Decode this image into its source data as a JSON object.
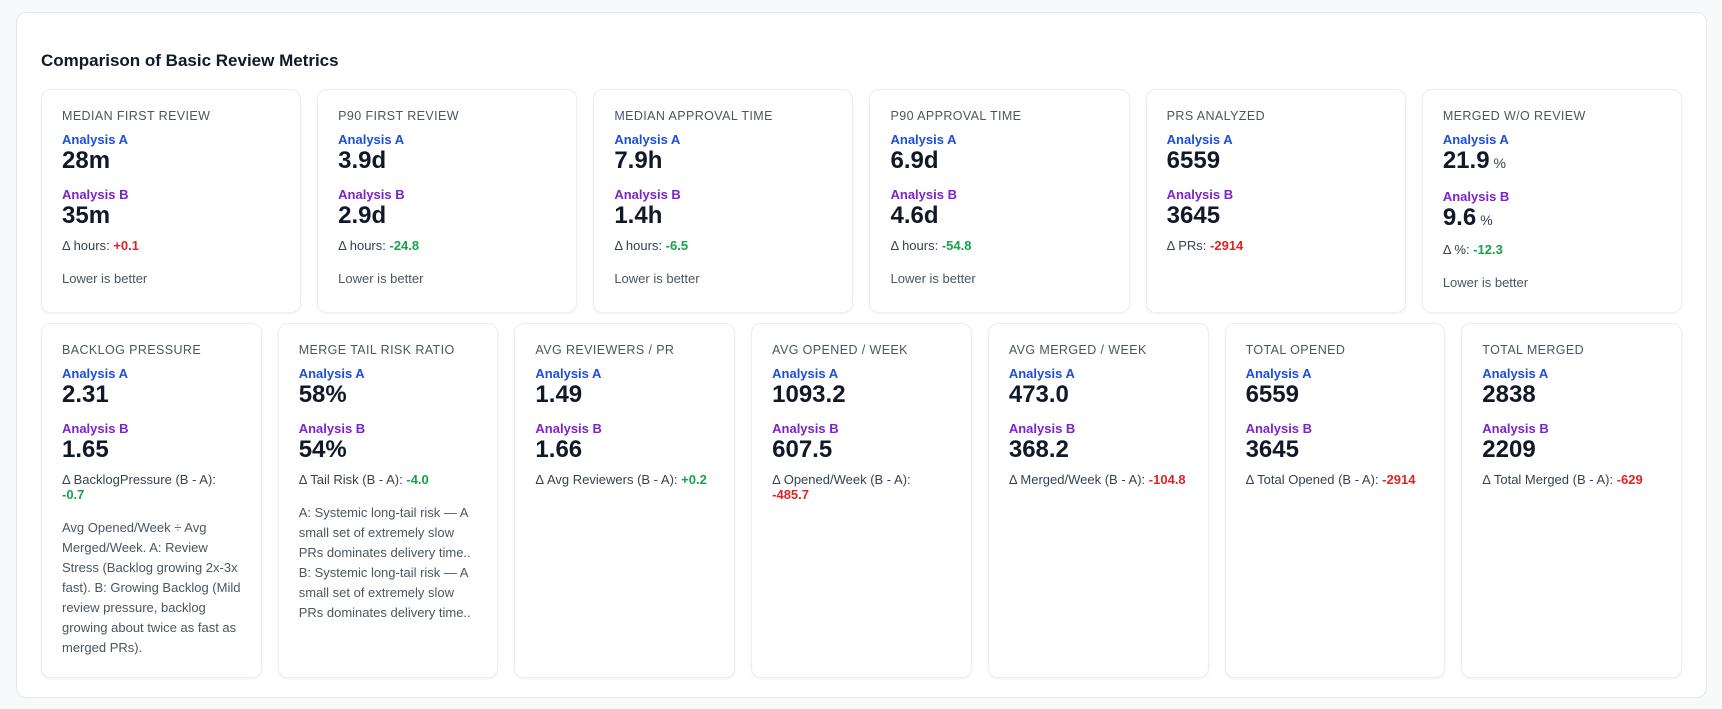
{
  "title": "Comparison of Basic Review Metrics",
  "rows": [
    [
      {
        "label": "MEDIAN FIRST REVIEW",
        "a_label": "Analysis A",
        "a_value": "28m",
        "b_label": "Analysis B",
        "b_value": "35m",
        "delta_label": "Δ hours:",
        "delta": "+0.1",
        "delta_color": "#dc2626",
        "note": "Lower is better"
      },
      {
        "label": "P90 FIRST REVIEW",
        "a_label": "Analysis A",
        "a_value": "3.9d",
        "b_label": "Analysis B",
        "b_value": "2.9d",
        "delta_label": "Δ hours:",
        "delta": "-24.8",
        "delta_color": "#16a34a",
        "note": "Lower is better"
      },
      {
        "label": "MEDIAN APPROVAL TIME",
        "a_label": "Analysis A",
        "a_value": "7.9h",
        "b_label": "Analysis B",
        "b_value": "1.4h",
        "delta_label": "Δ hours:",
        "delta": "-6.5",
        "delta_color": "#16a34a",
        "note": "Lower is better"
      },
      {
        "label": "P90 APPROVAL TIME",
        "a_label": "Analysis A",
        "a_value": "6.9d",
        "b_label": "Analysis B",
        "b_value": "4.6d",
        "delta_label": "Δ hours:",
        "delta": "-54.8",
        "delta_color": "#16a34a",
        "note": "Lower is better"
      },
      {
        "label": "PRS ANALYZED",
        "a_label": "Analysis A",
        "a_value": "6559",
        "b_label": "Analysis B",
        "b_value": "3645",
        "delta_label": "Δ PRs:",
        "delta": "-2914",
        "delta_color": "#dc2626"
      },
      {
        "label": "MERGED W/O REVIEW",
        "a_label": "Analysis A",
        "a_value": "21.9",
        "a_unit": "%",
        "b_label": "Analysis B",
        "b_value": "9.6",
        "b_unit": "%",
        "delta_label": "Δ %:",
        "delta": "-12.3",
        "delta_color": "#16a34a",
        "note": "Lower is better"
      }
    ],
    [
      {
        "label": "BACKLOG PRESSURE",
        "a_label": "Analysis A",
        "a_value": "2.31",
        "b_label": "Analysis B",
        "b_value": "1.65",
        "delta_label": "Δ BacklogPressure (B - A):",
        "delta": "-0.7",
        "delta_color": "#16a34a",
        "note": "Avg Opened/Week ÷ Avg Merged/Week. A: Review Stress (Backlog growing 2x-3x fast). B: Growing Backlog (Mild review pressure, backlog growing about twice as fast as merged PRs)."
      },
      {
        "label": "MERGE TAIL RISK RATIO",
        "a_label": "Analysis A",
        "a_value": "58%",
        "b_label": "Analysis B",
        "b_value": "54%",
        "delta_label": "Δ Tail Risk (B - A):",
        "delta": "-4.0",
        "delta_color": "#16a34a",
        "note": "A: Systemic long-tail risk — A small set of extremely slow PRs dominates delivery time.. B: Systemic long-tail risk — A small set of extremely slow PRs dominates delivery time.."
      },
      {
        "label": "AVG REVIEWERS / PR",
        "a_label": "Analysis A",
        "a_value": "1.49",
        "b_label": "Analysis B",
        "b_value": "1.66",
        "delta_label": "Δ Avg Reviewers (B - A):",
        "delta": "+0.2",
        "delta_color": "#16a34a"
      },
      {
        "label": "AVG OPENED / WEEK",
        "a_label": "Analysis A",
        "a_value": "1093.2",
        "b_label": "Analysis B",
        "b_value": "607.5",
        "delta_label": "Δ Opened/Week (B - A):",
        "delta": "-485.7",
        "delta_color": "#dc2626"
      },
      {
        "label": "AVG MERGED / WEEK",
        "a_label": "Analysis A",
        "a_value": "473.0",
        "b_label": "Analysis B",
        "b_value": "368.2",
        "delta_label": "Δ Merged/Week (B - A):",
        "delta": "-104.8",
        "delta_color": "#dc2626"
      },
      {
        "label": "TOTAL OPENED",
        "a_label": "Analysis A",
        "a_value": "6559",
        "b_label": "Analysis B",
        "b_value": "3645",
        "delta_label": "Δ Total Opened (B - A):",
        "delta": "-2914",
        "delta_color": "#dc2626"
      },
      {
        "label": "TOTAL MERGED",
        "a_label": "Analysis A",
        "a_value": "2838",
        "b_label": "Analysis B",
        "b_value": "2209",
        "delta_label": "Δ Total Merged (B - A):",
        "delta": "-629",
        "delta_color": "#dc2626"
      }
    ]
  ]
}
